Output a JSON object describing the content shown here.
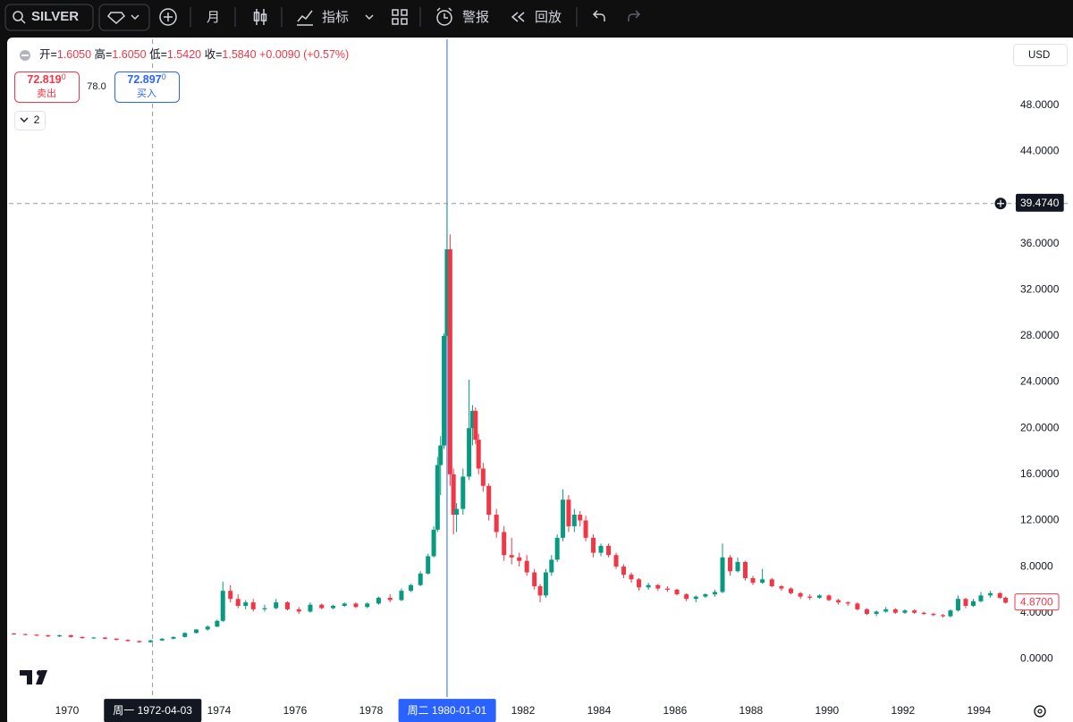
{
  "toolbar": {
    "symbol": "SILVER",
    "interval": "月",
    "indicators": "指标",
    "alert": "警报",
    "replay": "回放"
  },
  "legend": {
    "items": [
      {
        "label": "开=",
        "value": "1.6050"
      },
      {
        "label": "高=",
        "value": "1.6050"
      },
      {
        "label": "低=",
        "value": "1.5420"
      },
      {
        "label": "收=",
        "value": "1.5840"
      }
    ],
    "change": "+0.0090 (+0.57%)",
    "sell": {
      "price": "72.819",
      "fraction": "0",
      "label": "卖出"
    },
    "spread": "78.0",
    "buy": {
      "price": "72.897",
      "fraction": "0",
      "label": "买入"
    },
    "indicator_count": "2"
  },
  "currency": "USD",
  "chart_data": {
    "type": "candlestick",
    "up_color": "#089981",
    "down_color": "#f23645",
    "grid": false,
    "x": [
      1968.6,
      1968.9,
      1969.2,
      1969.5,
      1969.8,
      1970.1,
      1970.4,
      1970.7,
      1971.0,
      1971.3,
      1971.6,
      1971.9,
      1972.2,
      1972.5,
      1972.8,
      1973.1,
      1973.4,
      1973.7,
      1973.95,
      1974.1,
      1974.3,
      1974.5,
      1974.7,
      1974.9,
      1975.2,
      1975.5,
      1975.8,
      1976.1,
      1976.4,
      1976.7,
      1977.0,
      1977.3,
      1977.6,
      1977.9,
      1978.2,
      1978.5,
      1978.8,
      1979.05,
      1979.3,
      1979.5,
      1979.65,
      1979.75,
      1979.83,
      1979.92,
      1980.0,
      1980.08,
      1980.17,
      1980.25,
      1980.42,
      1980.58,
      1980.67,
      1980.75,
      1980.83,
      1980.95,
      1981.1,
      1981.3,
      1981.5,
      1981.7,
      1981.9,
      1982.1,
      1982.3,
      1982.45,
      1982.6,
      1982.75,
      1982.9,
      1983.05,
      1983.2,
      1983.35,
      1983.5,
      1983.65,
      1983.85,
      1984.05,
      1984.25,
      1984.45,
      1984.65,
      1984.85,
      1985.05,
      1985.3,
      1985.55,
      1985.8,
      1986.05,
      1986.3,
      1986.55,
      1986.8,
      1987.05,
      1987.25,
      1987.45,
      1987.65,
      1987.85,
      1988.05,
      1988.3,
      1988.55,
      1988.8,
      1989.05,
      1989.3,
      1989.55,
      1989.8,
      1990.05,
      1990.3,
      1990.55,
      1990.8,
      1991.05,
      1991.3,
      1991.55,
      1991.8,
      1992.05,
      1992.3,
      1992.55,
      1992.8,
      1993.05,
      1993.25,
      1993.45,
      1993.65,
      1993.85,
      1994.05,
      1994.3,
      1994.55,
      1994.7
    ],
    "open": [
      2.2,
      2.15,
      2.1,
      2.05,
      1.95,
      2.05,
      1.9,
      1.8,
      1.85,
      1.75,
      1.65,
      1.55,
      1.45,
      1.6,
      1.75,
      1.9,
      2.25,
      2.55,
      2.8,
      3.3,
      5.9,
      5.2,
      4.6,
      4.9,
      4.3,
      4.4,
      4.9,
      4.3,
      4.1,
      4.7,
      4.4,
      4.6,
      4.8,
      4.5,
      4.8,
      5.3,
      5.1,
      5.9,
      6.4,
      7.4,
      8.9,
      11.2,
      16.8,
      18.5,
      28.0,
      35.5,
      16.0,
      12.5,
      13.0,
      15.8,
      20.0,
      21.5,
      19.0,
      16.5,
      15.0,
      12.5,
      11.0,
      9.0,
      8.8,
      8.5,
      7.5,
      6.3,
      5.5,
      7.5,
      8.6,
      10.5,
      13.8,
      11.5,
      12.5,
      12.0,
      10.5,
      9.2,
      9.8,
      9.0,
      8.0,
      7.3,
      6.9,
      6.2,
      6.4,
      6.1,
      6.0,
      5.6,
      5.2,
      5.4,
      5.6,
      5.8,
      8.8,
      7.6,
      8.4,
      7.0,
      6.6,
      6.9,
      6.3,
      6.1,
      5.7,
      5.4,
      5.3,
      5.5,
      5.1,
      4.9,
      4.8,
      4.3,
      3.9,
      4.1,
      4.3,
      4.0,
      4.2,
      4.0,
      3.9,
      3.8,
      3.7,
      4.2,
      5.2,
      4.6,
      5.0,
      5.5,
      5.7,
      5.3
    ],
    "high": [
      2.25,
      2.2,
      2.15,
      2.1,
      2.1,
      2.1,
      1.95,
      1.9,
      1.9,
      1.8,
      1.7,
      1.6,
      1.65,
      1.8,
      1.95,
      2.3,
      2.6,
      2.9,
      3.4,
      6.7,
      6.4,
      5.6,
      5.1,
      5.2,
      4.7,
      5.2,
      5.0,
      4.5,
      4.9,
      4.8,
      4.7,
      4.9,
      4.9,
      4.9,
      5.4,
      5.6,
      6.1,
      6.5,
      7.6,
      9.1,
      11.5,
      17.5,
      19.3,
      28.2,
      39.47,
      36.8,
      16.5,
      13.5,
      16.5,
      24.2,
      22.0,
      21.8,
      19.5,
      17.0,
      15.2,
      13.0,
      11.5,
      10.5,
      9.2,
      9.0,
      7.8,
      6.5,
      7.8,
      9.0,
      10.8,
      14.7,
      14.2,
      13.0,
      12.8,
      12.4,
      10.8,
      10.0,
      10.0,
      9.2,
      8.2,
      7.5,
      7.0,
      6.6,
      6.5,
      6.3,
      6.1,
      5.7,
      5.5,
      5.7,
      6.0,
      10.0,
      9.0,
      8.8,
      8.5,
      7.2,
      7.8,
      7.0,
      6.4,
      6.2,
      5.8,
      5.6,
      5.6,
      5.6,
      5.2,
      5.0,
      4.9,
      4.4,
      4.2,
      4.5,
      4.4,
      4.3,
      4.3,
      4.1,
      4.0,
      3.9,
      4.3,
      5.5,
      5.3,
      5.2,
      5.8,
      5.9,
      5.8,
      5.4
    ],
    "low": [
      2.1,
      2.05,
      1.95,
      1.9,
      1.9,
      1.85,
      1.75,
      1.75,
      1.7,
      1.6,
      1.5,
      1.4,
      1.42,
      1.55,
      1.7,
      1.85,
      2.2,
      2.45,
      2.75,
      3.2,
      4.9,
      4.4,
      4.3,
      4.1,
      4.1,
      4.3,
      4.2,
      3.9,
      4.0,
      4.3,
      4.3,
      4.5,
      4.4,
      4.4,
      4.7,
      4.9,
      5.0,
      5.8,
      6.3,
      7.3,
      8.8,
      11.0,
      14.2,
      18.2,
      27.5,
      15.0,
      10.8,
      11.0,
      12.5,
      15.5,
      18.5,
      18.6,
      16.0,
      14.5,
      12.0,
      10.5,
      8.5,
      8.2,
      8.0,
      7.2,
      6.0,
      4.9,
      5.3,
      7.2,
      8.4,
      10.2,
      11.0,
      11.0,
      11.5,
      10.2,
      8.8,
      8.9,
      8.8,
      7.8,
      7.0,
      6.6,
      5.9,
      6.0,
      5.9,
      5.8,
      5.5,
      5.0,
      4.9,
      5.3,
      5.4,
      5.7,
      7.2,
      7.5,
      6.8,
      6.4,
      6.5,
      6.2,
      5.9,
      5.6,
      5.2,
      5.1,
      5.2,
      5.0,
      4.7,
      4.6,
      4.2,
      3.8,
      3.7,
      4.0,
      3.9,
      3.9,
      3.9,
      3.8,
      3.7,
      3.6,
      3.6,
      4.1,
      4.4,
      4.5,
      4.9,
      5.3,
      5.2,
      4.8
    ],
    "close": [
      2.15,
      2.1,
      2.05,
      1.95,
      2.05,
      1.9,
      1.8,
      1.85,
      1.75,
      1.65,
      1.55,
      1.45,
      1.6,
      1.75,
      1.9,
      2.25,
      2.55,
      2.8,
      3.3,
      5.9,
      5.2,
      4.6,
      4.9,
      4.3,
      4.4,
      4.9,
      4.3,
      4.1,
      4.7,
      4.4,
      4.6,
      4.8,
      4.5,
      4.8,
      5.3,
      5.1,
      5.9,
      6.4,
      7.4,
      8.9,
      11.2,
      16.8,
      18.5,
      28.0,
      35.5,
      16.0,
      12.5,
      13.0,
      15.8,
      20.0,
      21.5,
      19.0,
      16.5,
      15.0,
      12.5,
      11.0,
      9.0,
      8.8,
      8.5,
      7.5,
      6.3,
      5.5,
      7.5,
      8.6,
      10.5,
      13.8,
      11.5,
      12.5,
      12.0,
      10.5,
      9.2,
      9.8,
      9.0,
      8.0,
      7.3,
      6.9,
      6.2,
      6.4,
      6.1,
      6.0,
      5.6,
      5.2,
      5.4,
      5.6,
      5.8,
      8.8,
      7.6,
      8.4,
      7.0,
      6.6,
      6.9,
      6.3,
      6.1,
      5.7,
      5.4,
      5.3,
      5.5,
      5.1,
      4.9,
      4.8,
      4.3,
      3.9,
      4.1,
      4.3,
      4.0,
      4.2,
      4.0,
      3.9,
      3.8,
      3.7,
      4.2,
      5.2,
      4.6,
      5.0,
      5.5,
      5.7,
      5.3,
      4.87
    ],
    "xlim": [
      1968.47,
      1994.78
    ],
    "xticks": [
      1970,
      1972,
      1974,
      1976,
      1978,
      1980,
      1982,
      1984,
      1986,
      1988,
      1990,
      1992,
      1994
    ],
    "ylim": [
      -3.3,
      52.0
    ],
    "yticks": [
      {
        "value": 0,
        "label": "0.0000"
      },
      {
        "value": 4,
        "label": "4.0000"
      },
      {
        "value": 8,
        "label": "8.0000"
      },
      {
        "value": 12,
        "label": "12.0000"
      },
      {
        "value": 16,
        "label": "16.0000"
      },
      {
        "value": 20,
        "label": "20.0000"
      },
      {
        "value": 24,
        "label": "24.0000"
      },
      {
        "value": 28,
        "label": "28.0000"
      },
      {
        "value": 32,
        "label": "32.0000"
      },
      {
        "value": 36,
        "label": "36.0000"
      },
      {
        "value": 44,
        "label": "44.0000"
      },
      {
        "value": 48,
        "label": "48.0000"
      }
    ],
    "crosshair_x": [
      {
        "value": 1972.25,
        "label": "周一 1972-04-03"
      },
      {
        "value": 1980.0,
        "label": "周二 1980-01-01"
      }
    ],
    "crosshair_y": {
      "value": 39.474,
      "label": "39.4740"
    },
    "last_price": {
      "value": 4.87,
      "label": "4.8700"
    }
  }
}
